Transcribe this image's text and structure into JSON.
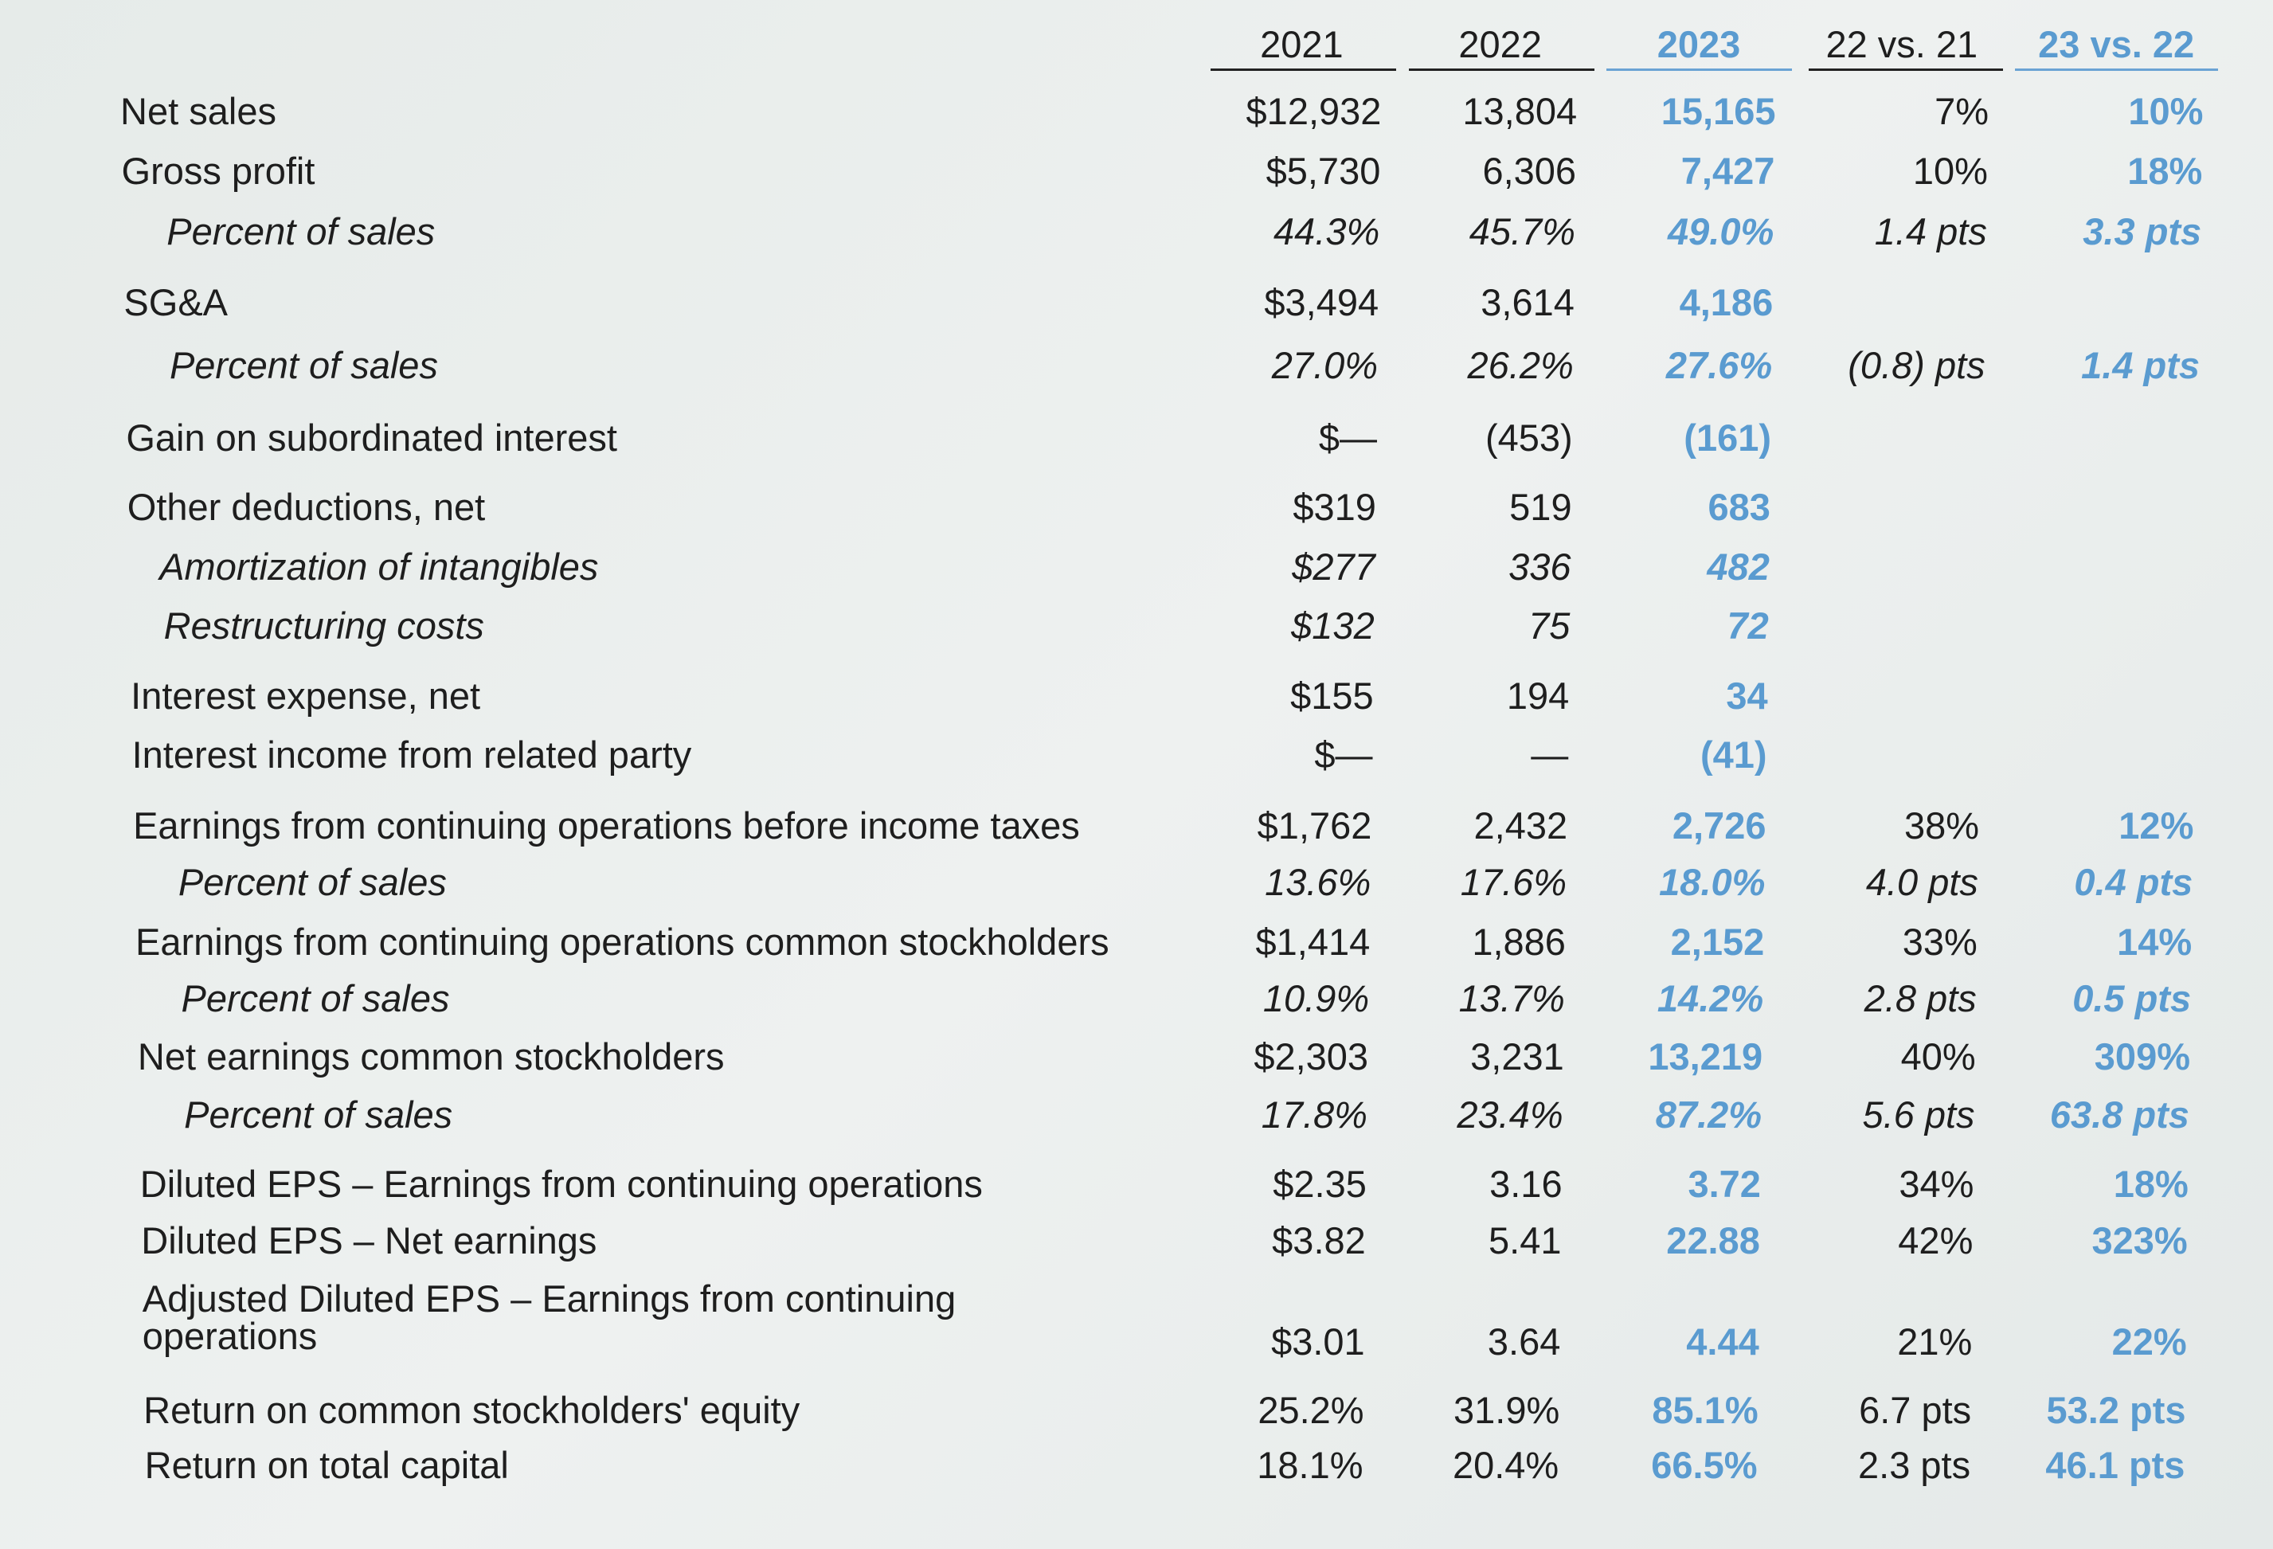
{
  "table": {
    "columns": [
      "2021",
      "2022",
      "2023",
      "22 vs. 21",
      "23 vs. 22"
    ],
    "rows": [
      {
        "label": "Net sales",
        "cells": [
          "$12,932",
          "13,804",
          "15,165",
          "7%",
          "10%"
        ]
      },
      {
        "label": "Gross profit",
        "cells": [
          "$5,730",
          "6,306",
          "7,427",
          "10%",
          "18%"
        ]
      },
      {
        "label": "Percent of sales",
        "cells": [
          "44.3%",
          "45.7%",
          "49.0%",
          "1.4 pts",
          "3.3 pts"
        ]
      },
      {
        "label": "SG&A",
        "cells": [
          "$3,494",
          "3,614",
          "4,186",
          null,
          null
        ]
      },
      {
        "label": "Percent of sales",
        "cells": [
          "27.0%",
          "26.2%",
          "27.6%",
          "(0.8) pts",
          "1.4 pts"
        ]
      },
      {
        "label": "Gain on subordinated interest",
        "cells": [
          "$—",
          "(453)",
          "(161)",
          null,
          null
        ]
      },
      {
        "label": "Other deductions, net",
        "cells": [
          "$319",
          "519",
          "683",
          null,
          null
        ]
      },
      {
        "label": "Amortization of intangibles",
        "cells": [
          "$277",
          "336",
          "482",
          null,
          null
        ]
      },
      {
        "label": "Restructuring costs",
        "cells": [
          "$132",
          "75",
          "72",
          null,
          null
        ]
      },
      {
        "label": "Interest expense, net",
        "cells": [
          "$155",
          "194",
          "34",
          null,
          null
        ]
      },
      {
        "label": "Interest income from related party",
        "cells": [
          "$—",
          "—",
          "(41)",
          null,
          null
        ]
      },
      {
        "label": "Earnings from continuing operations before income taxes",
        "cells": [
          "$1,762",
          "2,432",
          "2,726",
          "38%",
          "12%"
        ]
      },
      {
        "label": "Percent of sales",
        "cells": [
          "13.6%",
          "17.6%",
          "18.0%",
          "4.0 pts",
          "0.4 pts"
        ]
      },
      {
        "label": "Earnings from continuing operations common stockholders",
        "cells": [
          "$1,414",
          "1,886",
          "2,152",
          "33%",
          "14%"
        ]
      },
      {
        "label": "Percent of sales",
        "cells": [
          "10.9%",
          "13.7%",
          "14.2%",
          "2.8 pts",
          "0.5 pts"
        ]
      },
      {
        "label": "Net earnings common stockholders",
        "cells": [
          "$2,303",
          "3,231",
          "13,219",
          "40%",
          "309%"
        ]
      },
      {
        "label": "Percent of sales",
        "cells": [
          "17.8%",
          "23.4%",
          "87.2%",
          "5.6 pts",
          "63.8 pts"
        ]
      },
      {
        "label": "Diluted EPS – Earnings from continuing operations",
        "cells": [
          "$2.35",
          "3.16",
          "3.72",
          "34%",
          "18%"
        ]
      },
      {
        "label": "Diluted EPS – Net earnings",
        "cells": [
          "$3.82",
          "5.41",
          "22.88",
          "42%",
          "323%"
        ]
      },
      {
        "label": "Adjusted Diluted EPS – Earnings from continuing operations",
        "cells": [
          "$3.01",
          "3.64",
          "4.44",
          "21%",
          "22%"
        ]
      },
      {
        "label": "Return on common stockholders' equity",
        "cells": [
          "25.2%",
          "31.9%",
          "85.1%",
          "6.7 pts",
          "53.2 pts"
        ]
      },
      {
        "label": "Return on total capital",
        "cells": [
          "18.1%",
          "20.4%",
          "66.5%",
          "2.3 pts",
          "46.1 pts"
        ]
      }
    ]
  }
}
